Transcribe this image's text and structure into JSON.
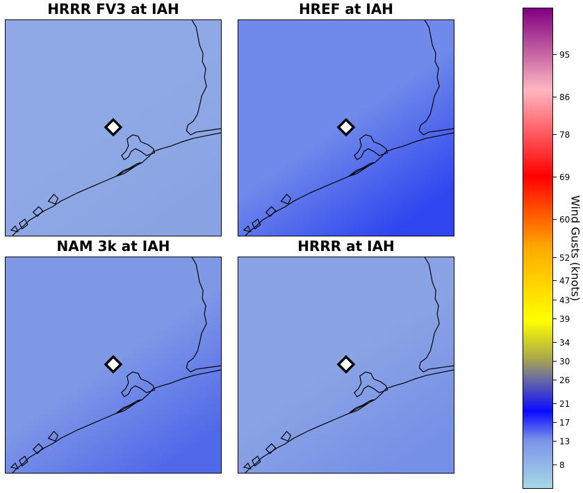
{
  "panels": [
    {
      "title": "HRRR FV3 at IAH",
      "base_color": "#8fa9e6",
      "gradient_color": "#8aa3e3",
      "station_marker": "diamond-marker"
    },
    {
      "title": "HREF at IAH",
      "base_color": "#6f8aea",
      "gradient_color": "#2f45f0",
      "station_marker": "diamond-marker"
    },
    {
      "title": "NAM 3k at IAH",
      "base_color": "#7f98e6",
      "gradient_color": "#5069ea",
      "station_marker": "diamond-marker"
    },
    {
      "title": "HRRR at IAH",
      "base_color": "#8aa3e4",
      "gradient_color": "#7590e7",
      "station_marker": "diamond-marker"
    }
  ],
  "colorbar": {
    "label": "Wind Gusts (knots)",
    "ticks": [
      "8",
      "13",
      "17",
      "21",
      "26",
      "30",
      "34",
      "39",
      "43",
      "47",
      "52",
      "60",
      "69",
      "78",
      "86",
      "95"
    ],
    "min": 3,
    "max": 105,
    "tick_values": [
      8,
      13,
      17,
      21,
      26,
      30,
      34,
      39,
      43,
      47,
      52,
      60,
      69,
      78,
      86,
      95
    ],
    "colors": {
      "bottom": "#a6d8e6",
      "light_blue": "#7b93ea",
      "blue": "#0a0aff",
      "grey": "#6e6e9e",
      "olive": "#a8a84a",
      "yellow": "#ffff00",
      "orange": "#ffaa00",
      "red": "#ff0000",
      "pink": "#ffb6c1",
      "purple": "#800080"
    }
  }
}
